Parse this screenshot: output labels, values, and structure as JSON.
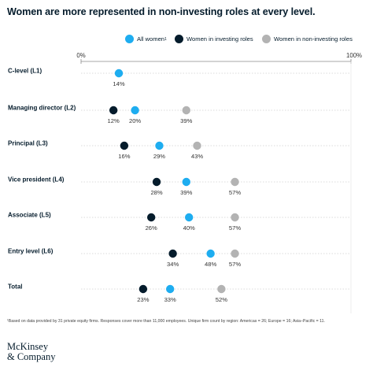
{
  "title": "Women are more represented in non-investing roles at every level.",
  "legend": [
    {
      "label": "All women",
      "sup": "1",
      "color": "#1eadf0"
    },
    {
      "label": "Women in investing roles",
      "sup": "",
      "color": "#051c2c"
    },
    {
      "label": "Women in non-investing roles",
      "sup": "",
      "color": "#b3b3b3"
    }
  ],
  "footnote": "¹Based on data provided by 31 private equity firms. Responses cover more than 11,000 employees. Unique firm count by region: Americas = 26; Europe = 16; Asia–Pacific = 11.",
  "logo": {
    "line1": "McKinsey",
    "line2": "& Company"
  },
  "chart_data": {
    "type": "scatter",
    "title": "Women are more represented in non-investing roles at every level.",
    "xlim": [
      0,
      100
    ],
    "axis_labels": [
      "0%",
      "100%"
    ],
    "value_suffix": "%",
    "categories": [
      "C-level (L1)",
      "Managing director (L2)",
      "Principal (L3)",
      "Vice president (L4)",
      "Associate (L5)",
      "Entry level (L6)",
      "Total"
    ],
    "series": [
      {
        "name": "All women",
        "color": "#1eadf0",
        "values": [
          14,
          20,
          29,
          39,
          40,
          48,
          33
        ]
      },
      {
        "name": "Women in investing roles",
        "color": "#051c2c",
        "values": [
          null,
          12,
          16,
          28,
          26,
          34,
          23
        ]
      },
      {
        "name": "Women in non-investing roles",
        "color": "#b3b3b3",
        "values": [
          null,
          39,
          43,
          57,
          57,
          57,
          52
        ]
      }
    ]
  }
}
